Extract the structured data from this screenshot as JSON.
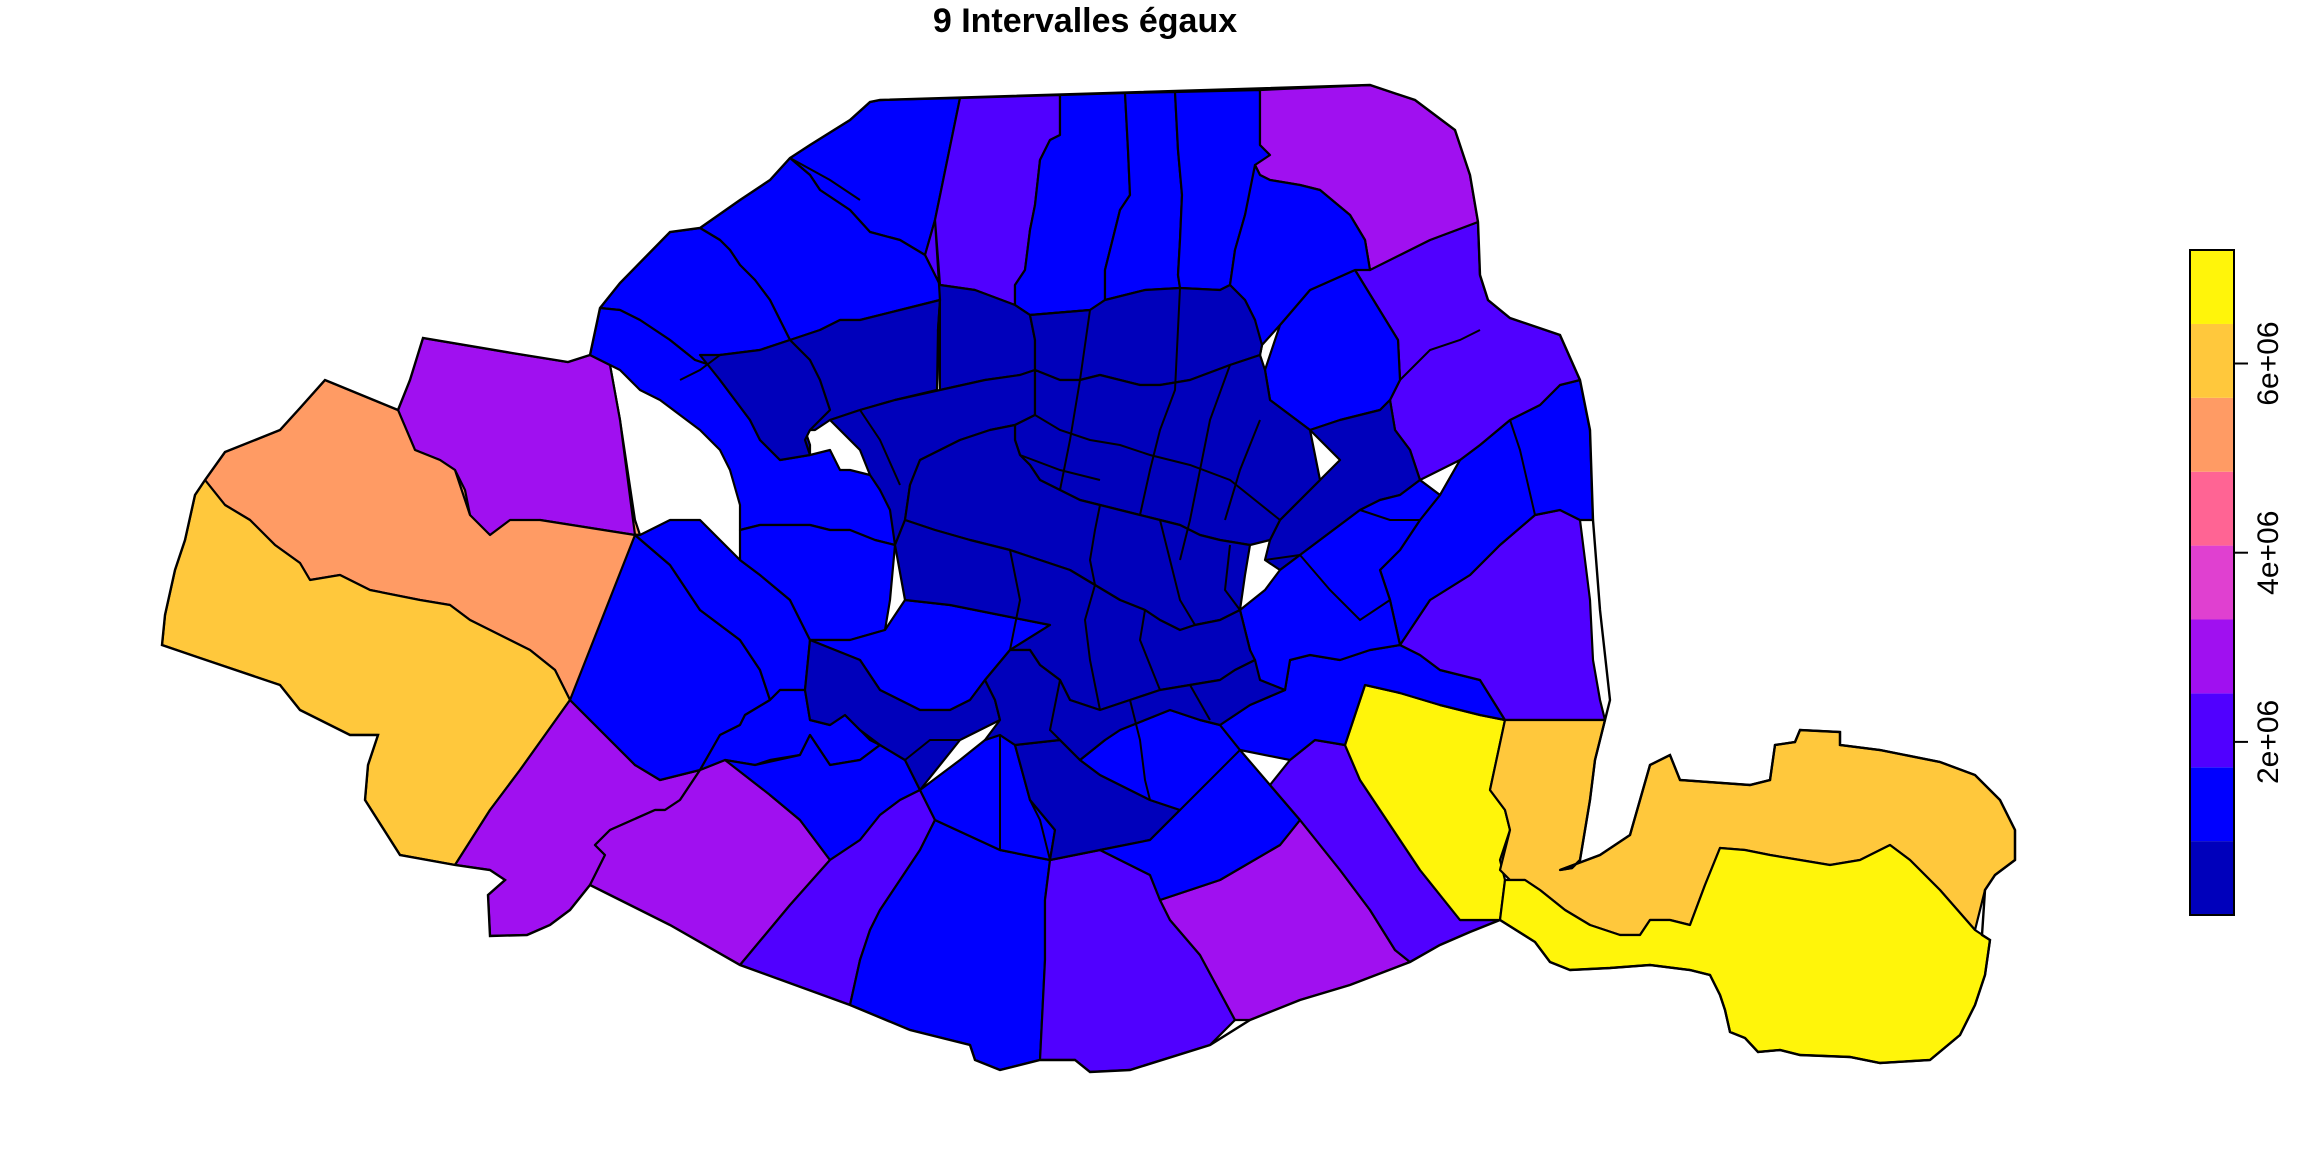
{
  "title": "9  Intervalles égaux",
  "legend": {
    "ticks": [
      {
        "value": 2000000,
        "label": "2e+06"
      },
      {
        "value": 4000000,
        "label": "4e+06"
      },
      {
        "value": 6000000,
        "label": "6e+06"
      }
    ],
    "range": [
      170000,
      7200000
    ],
    "classes": [
      {
        "from": 170000,
        "to": 951000,
        "color": "#0000BB"
      },
      {
        "from": 951000,
        "to": 1732000,
        "color": "#0000FF"
      },
      {
        "from": 1732000,
        "to": 2513000,
        "color": "#5000FF"
      },
      {
        "from": 2513000,
        "to": 3294000,
        "color": "#A010F0"
      },
      {
        "from": 3294000,
        "to": 4075000,
        "color": "#E040D0"
      },
      {
        "from": 4075000,
        "to": 4856000,
        "color": "#FF6494"
      },
      {
        "from": 4856000,
        "to": 5637000,
        "color": "#FF9B64"
      },
      {
        "from": 5637000,
        "to": 6418000,
        "color": "#FFC83C"
      },
      {
        "from": 6418000,
        "to": 7200000,
        "color": "#FFF50A"
      }
    ]
  }
}
